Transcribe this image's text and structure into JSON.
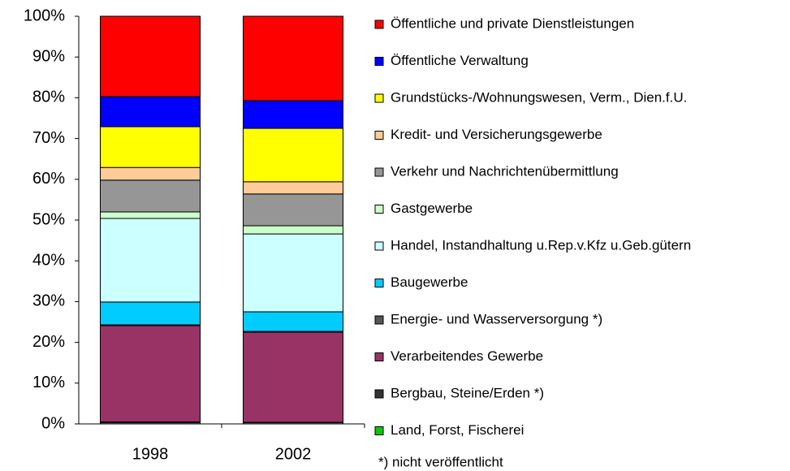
{
  "chart_data": {
    "type": "stacked_bar_100",
    "categories": [
      "1998",
      "2002"
    ],
    "series": [
      {
        "name": "Land, Forst, Fischerei",
        "color": "#00cc00",
        "values": [
          0.3,
          0.3
        ]
      },
      {
        "name": "Bergbau, Steine/Erden *)",
        "color": "#333333",
        "values": [
          0.2,
          0.1
        ]
      },
      {
        "name": "Verarbeitendes Gewerbe",
        "color": "#993366",
        "values": [
          23.6,
          22.1
        ]
      },
      {
        "name": "Energie- und Wasserversorgung *)",
        "color": "#555555",
        "values": [
          0.2,
          0.2
        ]
      },
      {
        "name": "Baugewerbe",
        "color": "#00ccff",
        "values": [
          5.6,
          4.8
        ]
      },
      {
        "name": "Handel, Instandhaltung u.Rep.v.Kfz u.Geb.gütern",
        "color": "#ccffff",
        "values": [
          20.5,
          19.1
        ]
      },
      {
        "name": "Gastgewerbe",
        "color": "#ccffcc",
        "values": [
          1.6,
          2.0
        ]
      },
      {
        "name": "Verkehr und Nachrichtenübermittlung",
        "color": "#969696",
        "values": [
          7.8,
          7.8
        ]
      },
      {
        "name": "Kredit- und Versicherungsgewerbe",
        "color": "#ffcc99",
        "values": [
          3.1,
          3.0
        ]
      },
      {
        "name": "Grundstücks-/Wohnungswesen, Verm., Dien.f.U.",
        "color": "#ffff00",
        "values": [
          10.0,
          13.1
        ]
      },
      {
        "name": "Öffentliche Verwaltung",
        "color": "#0000ff",
        "values": [
          7.4,
          6.8
        ]
      },
      {
        "name": "Öffentliche und private Dienstleistungen",
        "color": "#ff0000",
        "values": [
          19.7,
          20.7
        ]
      }
    ],
    "ylim": [
      0,
      100
    ],
    "yticks": [
      {
        "value": 0,
        "label": "0%"
      },
      {
        "value": 10,
        "label": "10%"
      },
      {
        "value": 20,
        "label": "20%"
      },
      {
        "value": 30,
        "label": "30%"
      },
      {
        "value": 40,
        "label": "40%"
      },
      {
        "value": 50,
        "label": "50%"
      },
      {
        "value": 60,
        "label": "60%"
      },
      {
        "value": 70,
        "label": "70%"
      },
      {
        "value": 80,
        "label": "80%"
      },
      {
        "value": 90,
        "label": "90%"
      },
      {
        "value": 100,
        "label": "100%"
      }
    ],
    "legend": "right",
    "note": "*) nicht veröffentlicht"
  }
}
